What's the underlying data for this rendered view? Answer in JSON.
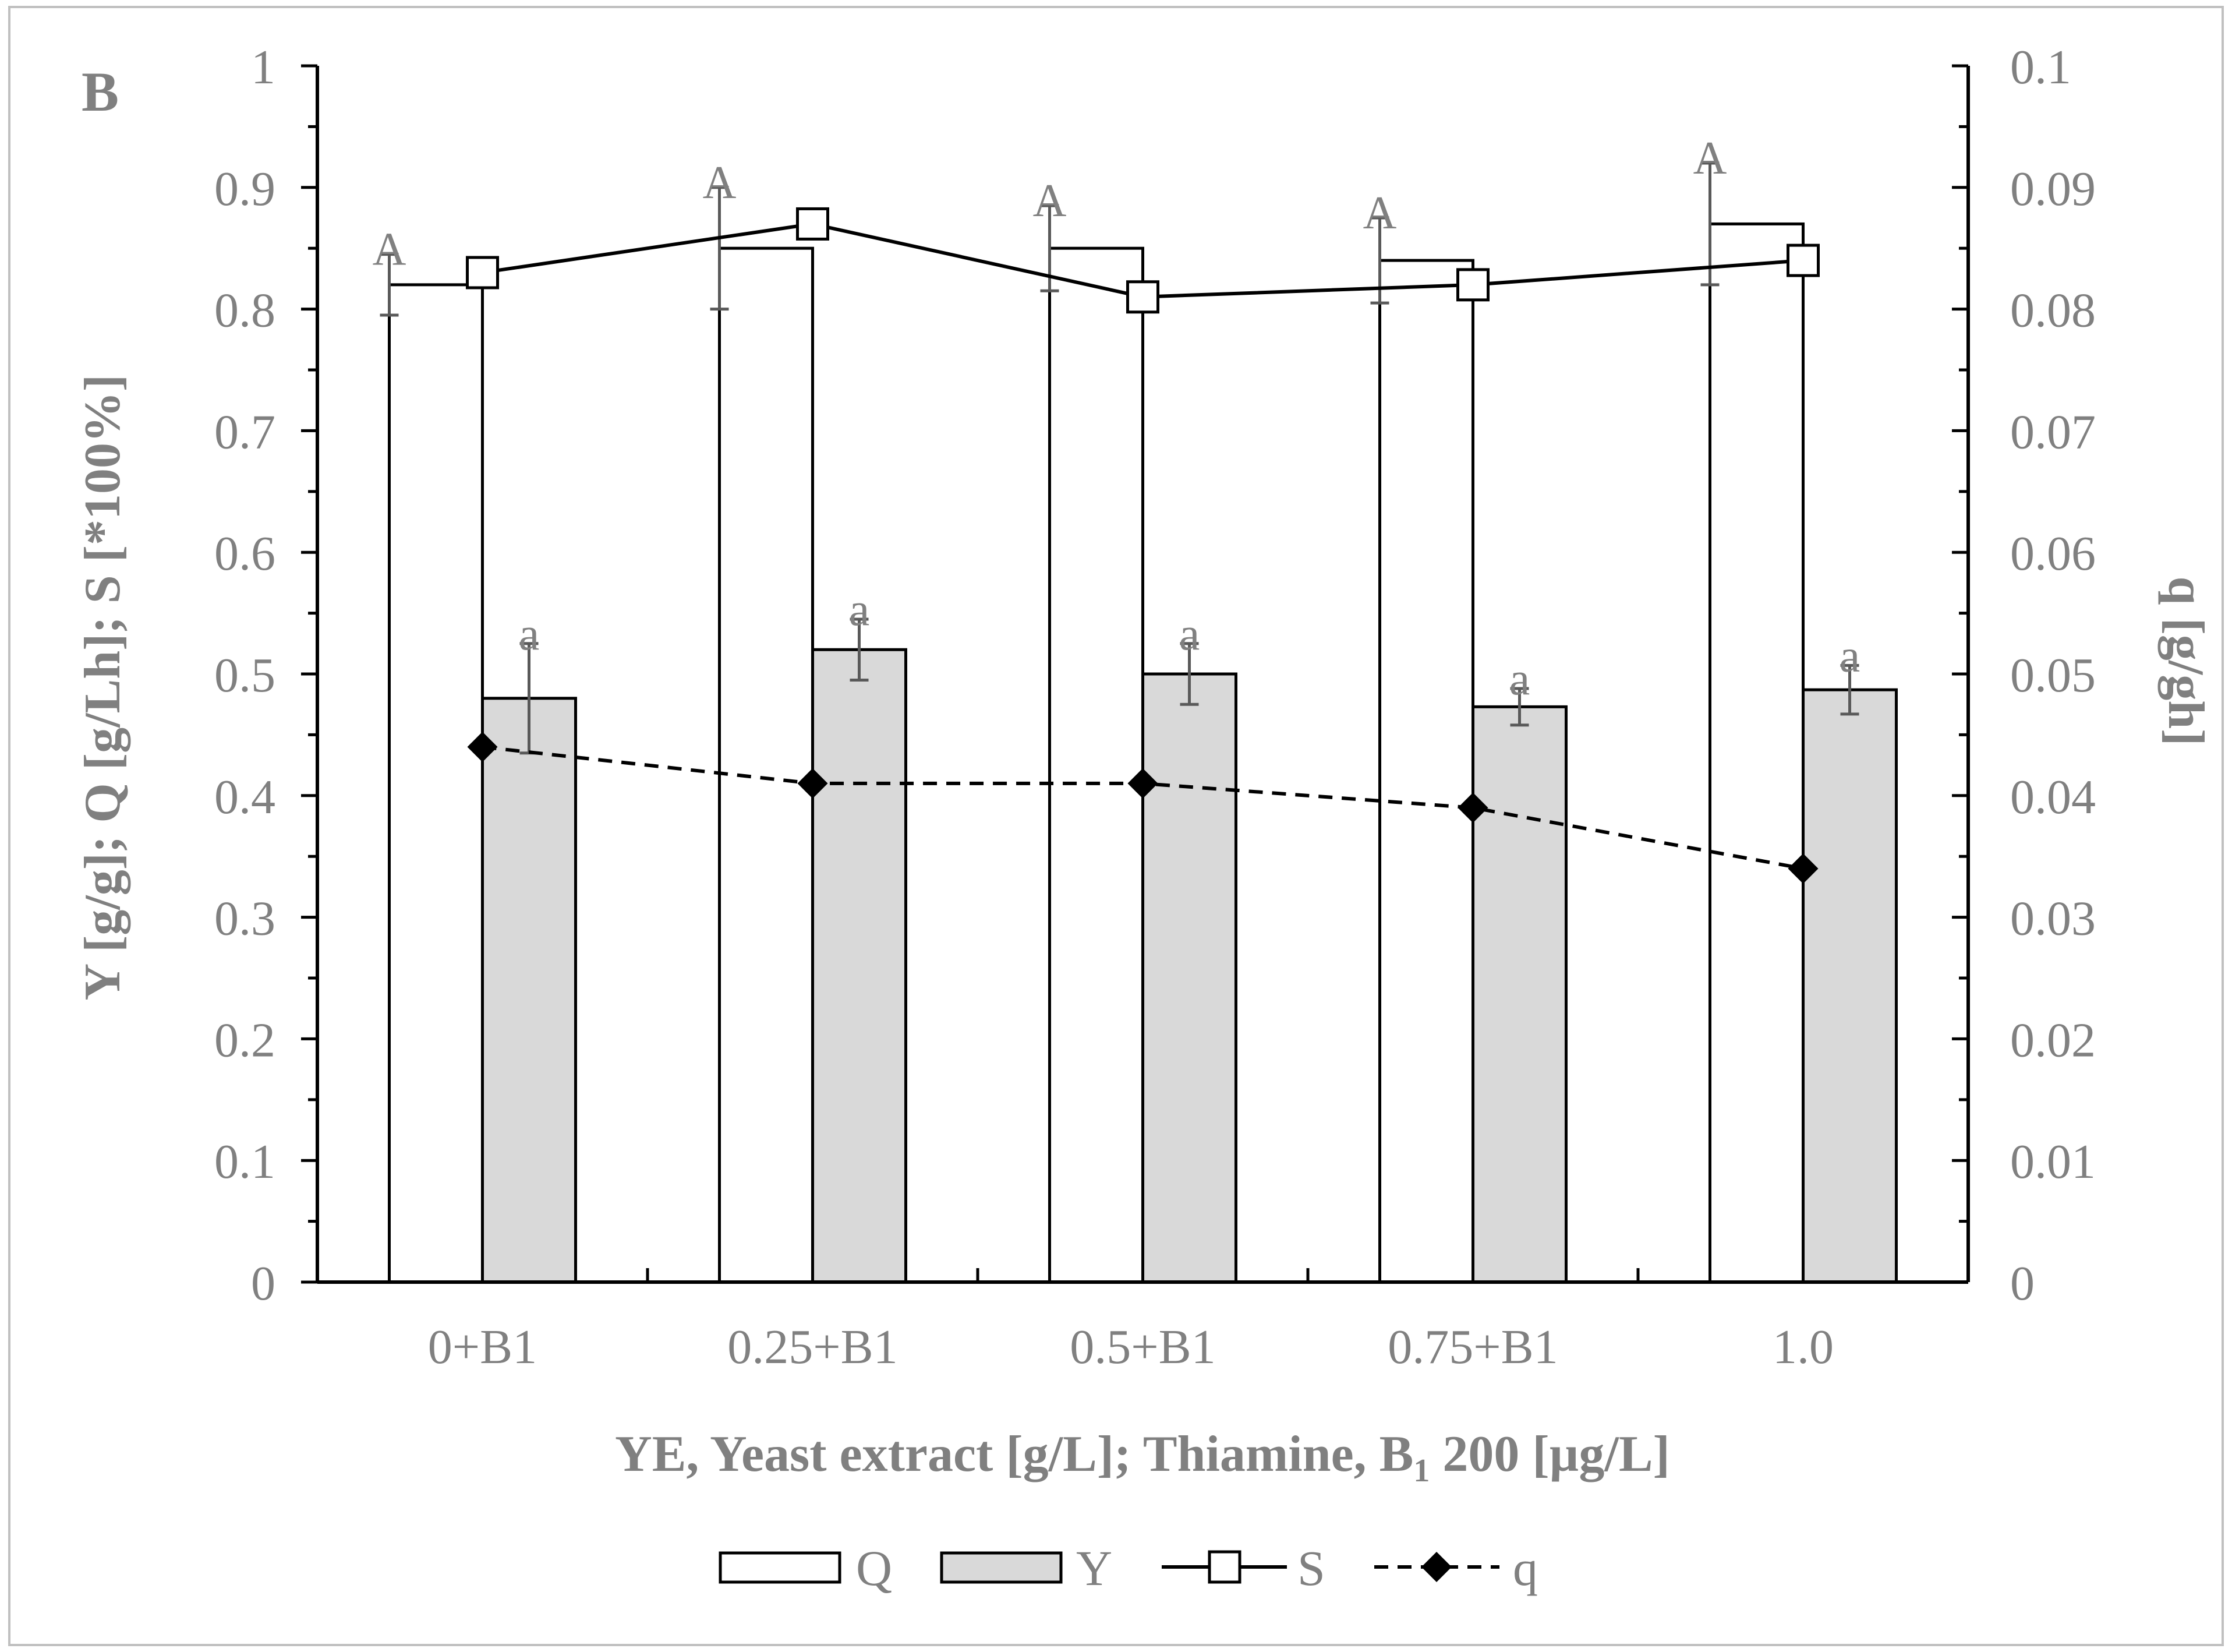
{
  "chart_data": {
    "type": "bar",
    "panel_label": "B",
    "categories": [
      "0+B1",
      "0.25+B1",
      "0.5+B1",
      "0.75+B1",
      "1.0"
    ],
    "xlabel_main": "YE, Yeast extract [g/L]; Thiamine, B",
    "xlabel_sub": "1",
    "xlabel_tail": " 200 [µg/L]",
    "ylabel_left": "Y [g/g]; Q [g/Lh]; S [*100%]",
    "ylabel_right": "q [g/gh]",
    "ylim_left": [
      0,
      1
    ],
    "ylim_right": [
      0,
      0.1
    ],
    "yticks_left": [
      "0",
      "0.1",
      "0.2",
      "0.3",
      "0.4",
      "0.5",
      "0.6",
      "0.7",
      "0.8",
      "0.9",
      "1"
    ],
    "yticks_right": [
      "0",
      "0.01",
      "0.02",
      "0.03",
      "0.04",
      "0.05",
      "0.06",
      "0.07",
      "0.08",
      "0.09",
      "0.1"
    ],
    "series": [
      {
        "name": "Q",
        "kind": "bar",
        "fill": "#ffffff",
        "values": [
          0.82,
          0.85,
          0.85,
          0.84,
          0.87
        ],
        "errors": [
          0.025,
          0.05,
          0.035,
          0.035,
          0.05
        ],
        "annotations": [
          "A",
          "A",
          "A",
          "A",
          "A"
        ]
      },
      {
        "name": "Y",
        "kind": "bar",
        "fill": "#d9d9d9",
        "values": [
          0.48,
          0.52,
          0.5,
          0.473,
          0.487
        ],
        "errors": [
          0.045,
          0.025,
          0.025,
          0.015,
          0.02
        ],
        "annotations": [
          "a",
          "a",
          "a",
          "a",
          "a"
        ]
      },
      {
        "name": "S",
        "kind": "line",
        "marker": "open-square",
        "axis": "left",
        "values": [
          0.83,
          0.87,
          0.81,
          0.82,
          0.84
        ]
      },
      {
        "name": "q",
        "kind": "line",
        "marker": "filled-diamond",
        "dashed": true,
        "axis": "right",
        "values": [
          0.044,
          0.041,
          0.041,
          0.039,
          0.034
        ]
      }
    ],
    "legend": [
      "Q",
      "Y",
      "S",
      "q"
    ],
    "legend_position": "bottom-center"
  },
  "colors": {
    "axis": "#000000",
    "text": "#808080",
    "bar_q": "#ffffff",
    "bar_y": "#d9d9d9",
    "error": "#595959"
  }
}
